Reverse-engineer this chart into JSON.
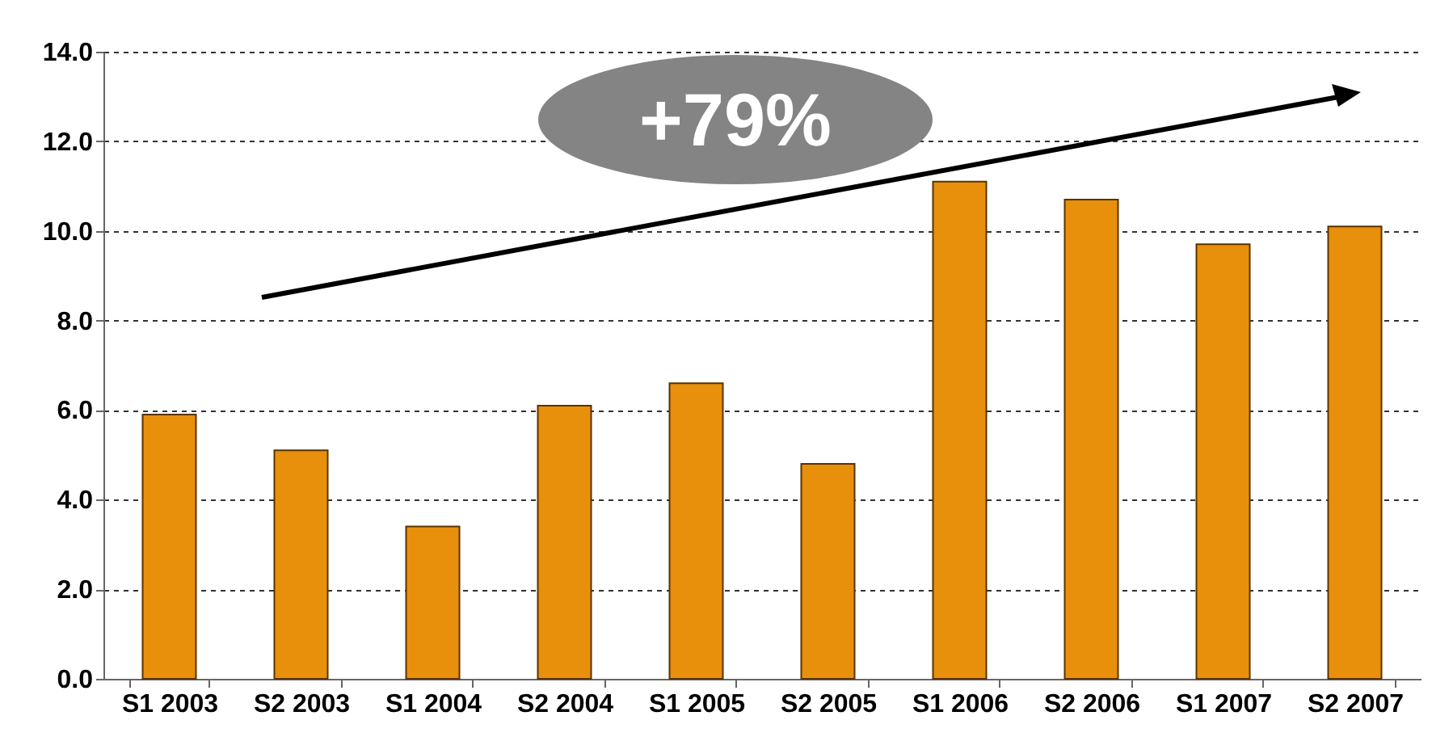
{
  "chart_data": {
    "type": "bar",
    "categories": [
      "S1 2003",
      "S2 2003",
      "S1 2004",
      "S2 2004",
      "S1 2005",
      "S2 2005",
      "S1 2006",
      "S2 2006",
      "S1 2007",
      "S2 2007"
    ],
    "values": [
      5.9,
      5.1,
      3.4,
      6.1,
      6.6,
      4.8,
      11.1,
      10.7,
      9.7,
      10.1
    ],
    "color": "#e8900c",
    "ylim": [
      0,
      14
    ],
    "yticks": [
      {
        "value": 0,
        "label": "0.0"
      },
      {
        "value": 2,
        "label": "2.0"
      },
      {
        "value": 4,
        "label": "4.0"
      },
      {
        "value": 6,
        "label": "6.0"
      },
      {
        "value": 8,
        "label": "8.0"
      },
      {
        "value": 10,
        "label": "10.0"
      },
      {
        "value": 12,
        "label": "12.0"
      },
      {
        "value": 14,
        "label": "14.0"
      }
    ],
    "grid": "y",
    "annotations": [
      "+79%"
    ]
  }
}
